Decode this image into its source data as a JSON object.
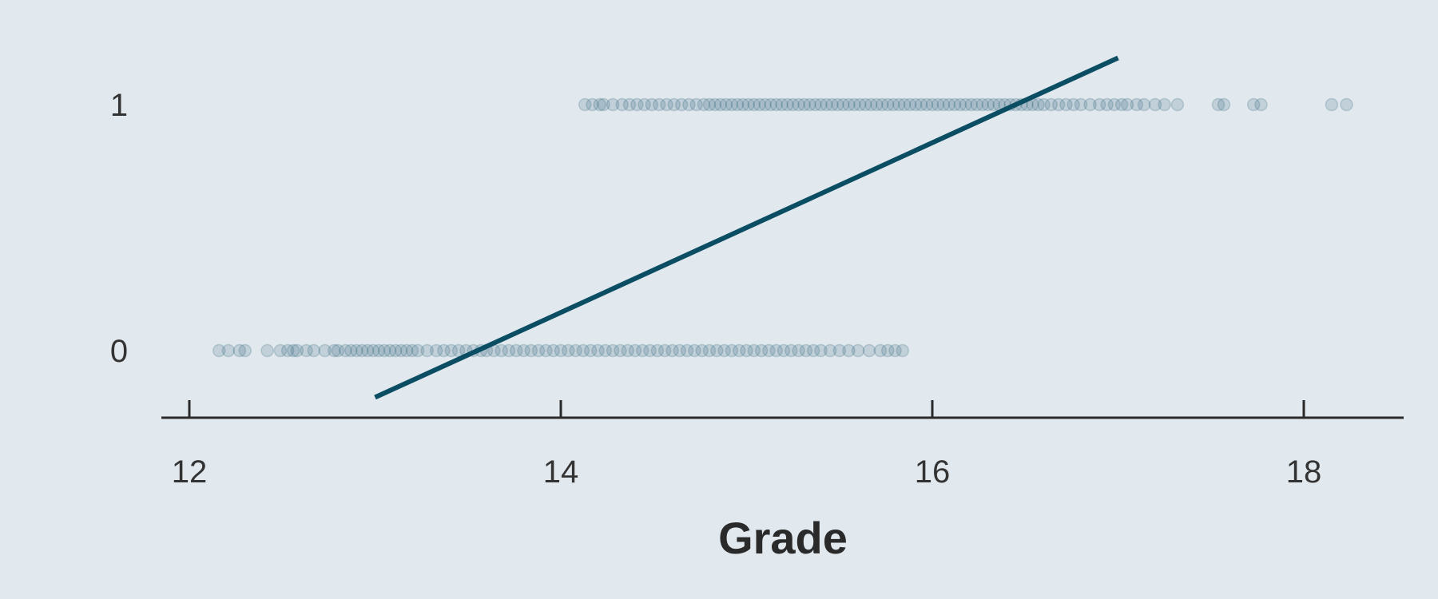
{
  "chart_data": {
    "type": "scatter",
    "title": "",
    "xlabel": "Grade",
    "ylabel": "",
    "xlim": [
      11.7,
      18.55
    ],
    "ylim": [
      -0.27,
      1.27
    ],
    "x_ticks": [
      12,
      14,
      16,
      18
    ],
    "y_ticks": [
      0,
      1
    ],
    "x_tick_labels": [
      "12",
      "14",
      "16",
      "18"
    ],
    "y_tick_labels": [
      "0",
      "1"
    ],
    "grid": false,
    "legend": "none",
    "colors": {
      "background": "#e1e8ee",
      "points": "#1c5a70",
      "line": "#0b4d63",
      "axis": "#2a2a2a",
      "text": "#333333"
    },
    "series": [
      {
        "kind": "points",
        "y": 0,
        "x": [
          12.16,
          12.21,
          12.27,
          12.3,
          12.42,
          12.49,
          12.53,
          12.56,
          12.58,
          12.63,
          12.67,
          12.73,
          12.78,
          12.8,
          12.84,
          12.87,
          12.9,
          12.93,
          12.96,
          12.99,
          13.02,
          13.05,
          13.08,
          13.11,
          13.14,
          13.17,
          13.2,
          13.23,
          13.28,
          13.33,
          13.37,
          13.41,
          13.45,
          13.49,
          13.53,
          13.57,
          13.6,
          13.64,
          13.68,
          13.72,
          13.76,
          13.8,
          13.84,
          13.88,
          13.92,
          13.96,
          14.0,
          14.04,
          14.08,
          14.12,
          14.16,
          14.2,
          14.24,
          14.28,
          14.32,
          14.36,
          14.4,
          14.44,
          14.48,
          14.52,
          14.56,
          14.6,
          14.64,
          14.68,
          14.72,
          14.76,
          14.8,
          14.84,
          14.88,
          14.92,
          14.96,
          15.0,
          15.04,
          15.08,
          15.12,
          15.16,
          15.2,
          15.24,
          15.28,
          15.32,
          15.36,
          15.4,
          15.45,
          15.5,
          15.55,
          15.6,
          15.66,
          15.72,
          15.76,
          15.8,
          15.84
        ]
      },
      {
        "kind": "points",
        "y": 1,
        "x": [
          14.13,
          14.17,
          14.21,
          14.23,
          14.28,
          14.33,
          14.37,
          14.41,
          14.45,
          14.49,
          14.53,
          14.57,
          14.61,
          14.65,
          14.69,
          14.73,
          14.77,
          14.8,
          14.83,
          14.86,
          14.89,
          14.92,
          14.95,
          14.98,
          15.01,
          15.04,
          15.07,
          15.1,
          15.13,
          15.16,
          15.19,
          15.22,
          15.25,
          15.28,
          15.31,
          15.34,
          15.37,
          15.4,
          15.43,
          15.46,
          15.49,
          15.52,
          15.55,
          15.58,
          15.61,
          15.64,
          15.67,
          15.7,
          15.73,
          15.76,
          15.79,
          15.82,
          15.85,
          15.88,
          15.91,
          15.94,
          15.97,
          16.0,
          16.03,
          16.06,
          16.09,
          16.12,
          16.15,
          16.18,
          16.21,
          16.24,
          16.27,
          16.3,
          16.33,
          16.36,
          16.39,
          16.42,
          16.45,
          16.48,
          16.51,
          16.54,
          16.57,
          16.6,
          16.64,
          16.68,
          16.72,
          16.76,
          16.8,
          16.85,
          16.9,
          16.94,
          16.98,
          17.02,
          17.05,
          17.1,
          17.14,
          17.2,
          17.25,
          17.32,
          17.54,
          17.57,
          17.73,
          17.77,
          18.15,
          18.23
        ]
      },
      {
        "kind": "line",
        "x": [
          13.0,
          17.0
        ],
        "y": [
          -0.19,
          1.19
        ]
      }
    ]
  }
}
